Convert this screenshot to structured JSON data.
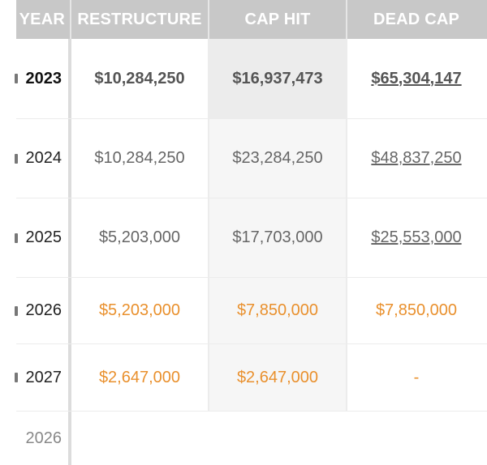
{
  "header": {
    "year": "YEAR",
    "restructure": "RESTRUCTURE",
    "cap_hit": "CAP HIT",
    "dead_cap": "DEAD CAP"
  },
  "rows": [
    {
      "year": "2023",
      "restructure": "$10,284,250",
      "cap_hit": "$16,937,473",
      "dead_cap": "$65,304,147"
    },
    {
      "year": "2024",
      "restructure": "$10,284,250",
      "cap_hit": "$23,284,250",
      "dead_cap": "$48,837,250"
    },
    {
      "year": "2025",
      "restructure": "$5,203,000",
      "cap_hit": "$17,703,000",
      "dead_cap": "$25,553,000"
    },
    {
      "year": "2026",
      "restructure": "$5,203,000",
      "cap_hit": "$7,850,000",
      "dead_cap": "$7,850,000"
    },
    {
      "year": "2027",
      "restructure": "$2,647,000",
      "cap_hit": "$2,647,000",
      "dead_cap": "-"
    }
  ],
  "footer": {
    "year": "2026"
  },
  "colors": {
    "header_bg": "#c8c8c8",
    "orange": "#e9902d",
    "text": "#666666"
  }
}
